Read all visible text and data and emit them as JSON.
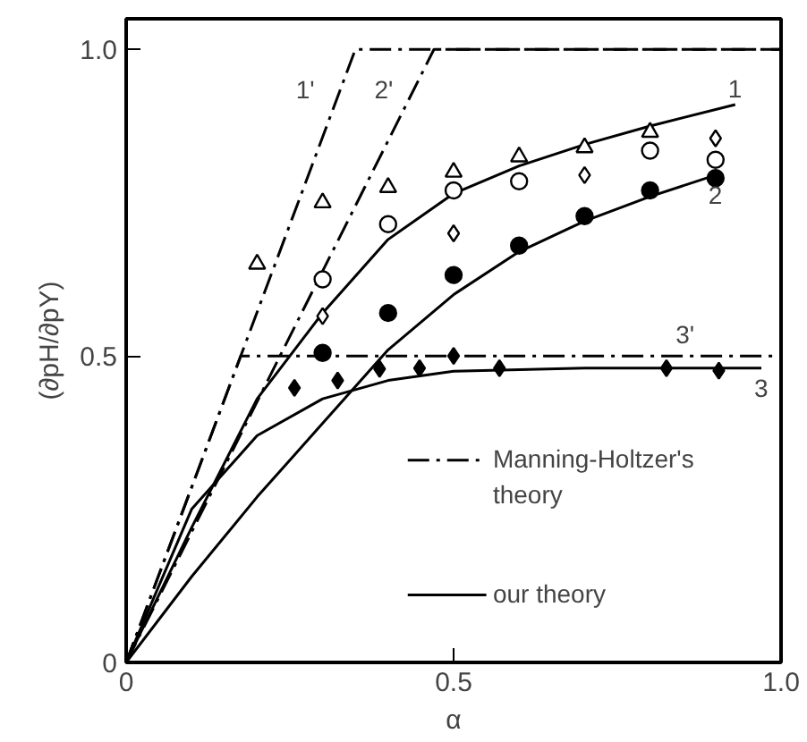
{
  "chart_data": {
    "type": "line",
    "xlabel": "α",
    "ylabel": "(∂pH/∂pY)",
    "xlim": [
      0,
      1.0
    ],
    "ylim": [
      0,
      1.05
    ],
    "xticks": [
      0,
      0.5,
      {
        "value": 1.0,
        "label": "1.0"
      }
    ],
    "yticks": [
      0,
      {
        "value": 0.5,
        "label": "0.5"
      },
      {
        "value": 1.0,
        "label": "1.0"
      }
    ],
    "grid": false,
    "series": [
      {
        "name": "1'",
        "line_style": "dashdot",
        "color": "#000000",
        "x": [
          0,
          0.35,
          1.0
        ],
        "values": [
          0,
          1.0,
          1.0
        ]
      },
      {
        "name": "2'",
        "line_style": "dashdot",
        "color": "#000000",
        "x": [
          0,
          0.47,
          1.0
        ],
        "values": [
          0,
          1.0,
          1.0
        ]
      },
      {
        "name": "3'",
        "line_style": "dashdot",
        "color": "#000000",
        "x": [
          0,
          0.175,
          1.0
        ],
        "values": [
          0,
          0.5,
          0.5
        ]
      },
      {
        "name": "1",
        "line_style": "solid",
        "color": "#000000",
        "x": [
          0,
          0.1,
          0.2,
          0.3,
          0.4,
          0.5,
          0.6,
          0.7,
          0.8,
          0.93
        ],
        "values": [
          0,
          0.22,
          0.43,
          0.57,
          0.69,
          0.765,
          0.81,
          0.845,
          0.875,
          0.91
        ]
      },
      {
        "name": "2",
        "line_style": "solid",
        "color": "#000000",
        "x": [
          0,
          0.1,
          0.2,
          0.3,
          0.4,
          0.5,
          0.6,
          0.7,
          0.8,
          0.9
        ],
        "values": [
          0,
          0.14,
          0.27,
          0.39,
          0.51,
          0.6,
          0.67,
          0.72,
          0.76,
          0.795
        ]
      },
      {
        "name": "3",
        "line_style": "solid",
        "color": "#000000",
        "x": [
          0,
          0.1,
          0.2,
          0.3,
          0.4,
          0.5,
          0.7,
          0.97
        ],
        "values": [
          0,
          0.25,
          0.37,
          0.43,
          0.46,
          0.475,
          0.48,
          0.48
        ]
      },
      {
        "type": "scatter",
        "marker": "triangle",
        "color": "#ffffff",
        "x": [
          0.2,
          0.3,
          0.4,
          0.5,
          0.6,
          0.7,
          0.8
        ],
        "values": [
          0.65,
          0.75,
          0.775,
          0.8,
          0.825,
          0.84,
          0.865
        ]
      },
      {
        "type": "scatter",
        "marker": "circle",
        "color": "#ffffff",
        "x": [
          0.3,
          0.4,
          0.5,
          0.6,
          0.8,
          0.9
        ],
        "values": [
          0.625,
          0.715,
          0.77,
          0.785,
          0.835,
          0.82
        ]
      },
      {
        "type": "scatter",
        "marker": "diamond",
        "color": "#ffffff",
        "x": [
          0.3,
          0.5,
          0.7,
          0.9
        ],
        "values": [
          0.565,
          0.7,
          0.795,
          0.855
        ]
      },
      {
        "type": "scatter",
        "marker": "circle",
        "color": "#000000",
        "x": [
          0.3,
          0.4,
          0.5,
          0.6,
          0.7,
          0.8,
          0.9
        ],
        "values": [
          0.505,
          0.57,
          0.632,
          0.68,
          0.728,
          0.77,
          0.79
        ]
      },
      {
        "type": "scatter",
        "marker": "diamond",
        "color": "#000000",
        "x": [
          0.257,
          0.323,
          0.387,
          0.448,
          0.5,
          0.57,
          0.825,
          0.905
        ],
        "values": [
          0.448,
          0.46,
          0.479,
          0.48,
          0.5,
          0.48,
          0.48,
          0.476
        ]
      }
    ],
    "annotations": [
      "Manning-Holtzer's theory",
      "our theory"
    ]
  }
}
